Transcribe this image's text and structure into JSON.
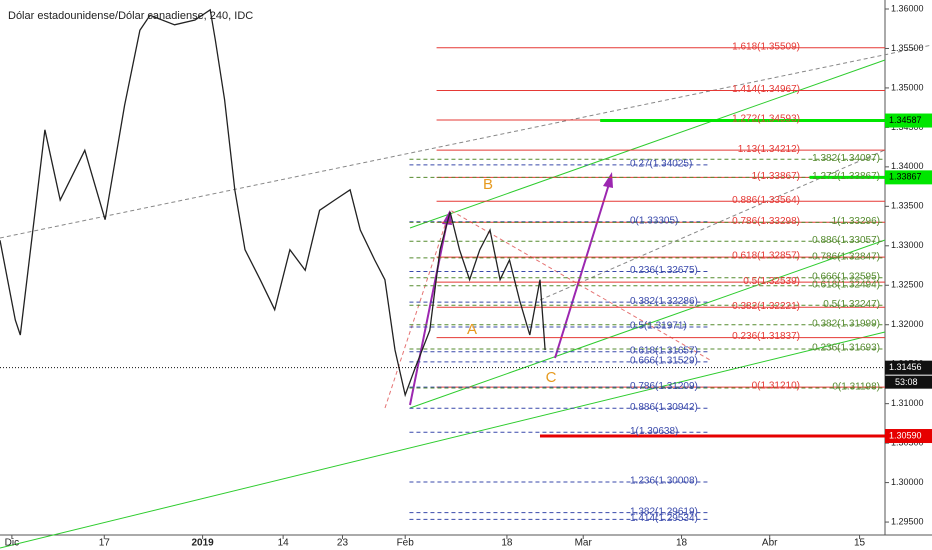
{
  "chart_data": {
    "type": "line",
    "title": "Dólar estadounidense/Dólar canadiense, 240, IDC",
    "x": [
      0,
      1.8,
      2.4,
      5.3,
      7.1,
      10.0,
      12.4,
      14.7,
      16.5,
      17.7,
      20.6,
      23.0,
      24.8,
      25.4,
      26.5,
      27.7,
      28.9,
      30.7,
      32.4,
      34.2,
      36.0,
      37.7,
      39.5,
      41.3,
      42.5,
      44.2,
      45.4,
      46.6,
      47.8,
      48.9,
      50.7,
      51.9,
      53.1,
      54.2,
      55.4,
      56.6,
      57.8,
      59.0,
      60.1,
      61.3,
      62.5,
      63.7,
      64.3
    ],
    "values": [
      1.3307,
      1.3206,
      1.3187,
      1.3447,
      1.3358,
      1.3421,
      1.3333,
      1.3478,
      1.3573,
      1.3592,
      1.358,
      1.3586,
      1.3599,
      1.3561,
      1.3485,
      1.3371,
      1.3295,
      1.3257,
      1.3219,
      1.3295,
      1.3269,
      1.3345,
      1.3358,
      1.3371,
      1.332,
      1.3282,
      1.3257,
      1.3168,
      1.3111,
      1.3143,
      1.3193,
      1.3295,
      1.3343,
      1.3295,
      1.3257,
      1.3295,
      1.332,
      1.3257,
      1.3282,
      1.3231,
      1.3187,
      1.3257,
      1.3168
    ],
    "color": "#222222",
    "xlim": [
      0,
      104.4
    ],
    "ylim": [
      1.29336,
      1.36114
    ],
    "xticks": [
      {
        "value": 1.4,
        "label": "Dic"
      },
      {
        "value": 12.3,
        "label": "17"
      },
      {
        "value": 23.9,
        "label": "2019"
      },
      {
        "value": 33.4,
        "label": "14"
      },
      {
        "value": 40.4,
        "label": "23"
      },
      {
        "value": 47.8,
        "label": "Feb"
      },
      {
        "value": 59.8,
        "label": "18"
      },
      {
        "value": 68.8,
        "label": "Mar"
      },
      {
        "value": 80.4,
        "label": "18"
      },
      {
        "value": 90.8,
        "label": "Abr"
      },
      {
        "value": 101.4,
        "label": "15"
      }
    ],
    "yticks": [
      {
        "value": 1.295,
        "label": "1.29500"
      },
      {
        "value": 1.3,
        "label": "1.30000"
      },
      {
        "value": 1.305,
        "label": "1.30500"
      },
      {
        "value": 1.31,
        "label": "1.31000"
      },
      {
        "value": 1.315,
        "label": "1.31500"
      },
      {
        "value": 1.32,
        "label": "1.32000"
      },
      {
        "value": 1.325,
        "label": "1.32500"
      },
      {
        "value": 1.33,
        "label": "1.33000"
      },
      {
        "value": 1.335,
        "label": "1.33500"
      },
      {
        "value": 1.34,
        "label": "1.34000"
      },
      {
        "value": 1.345,
        "label": "1.34500"
      },
      {
        "value": 1.35,
        "label": "1.35000"
      },
      {
        "value": 1.355,
        "label": "1.35500"
      },
      {
        "value": 1.36,
        "label": "1.36000"
      }
    ],
    "fib_sets": [
      {
        "color": "#e53935",
        "dashed": false,
        "x0": 51.5,
        "x1": 104.4,
        "levels": [
          {
            "value": 1.35509,
            "label": "1.618(1.35509)"
          },
          {
            "value": 1.34967,
            "label": "1.414(1.34967)"
          },
          {
            "value": 1.34593,
            "label": "1.272(1.34593)"
          },
          {
            "value": 1.34212,
            "label": "1.13(1.34212)"
          },
          {
            "value": 1.33867,
            "label": "1(1.33867)"
          },
          {
            "value": 1.33564,
            "label": "0.886(1.33564)"
          },
          {
            "value": 1.33298,
            "label": "0.786(1.33298)"
          },
          {
            "value": 1.32857,
            "label": "0.618(1.32857)"
          },
          {
            "value": 1.32539,
            "label": "0.5(1.32539)"
          },
          {
            "value": 1.32221,
            "label": "0.382(1.32221)"
          },
          {
            "value": 1.31837,
            "label": "0.236(1.31837)"
          },
          {
            "value": 1.3121,
            "label": "0(1.31210)"
          }
        ]
      },
      {
        "color": "#3949ab",
        "dashed": true,
        "x0": 48.3,
        "x1": 83.7,
        "levels": [
          {
            "value": 1.34025,
            "label": "0.27(1.34025)"
          },
          {
            "value": 1.33305,
            "label": "0(1.33305)"
          },
          {
            "value": 1.32675,
            "label": "0.236(1.32675)"
          },
          {
            "value": 1.32286,
            "label": "0.382(1.32286)"
          },
          {
            "value": 1.31971,
            "label": "0.5(1.31971)"
          },
          {
            "value": 1.31657,
            "label": "0.618(1.31657)"
          },
          {
            "value": 1.31529,
            "label": "0.666(1.31529)"
          },
          {
            "value": 1.31209,
            "label": "0.786(1.31209)"
          },
          {
            "value": 1.30942,
            "label": "0.886(1.30942)"
          },
          {
            "value": 1.30638,
            "label": "1(1.30638)"
          },
          {
            "value": 1.30008,
            "label": "1.236(1.30008)"
          },
          {
            "value": 1.29619,
            "label": "1.382(1.29619)"
          },
          {
            "value": 1.29534,
            "label": "1.414(1.29534)"
          }
        ]
      },
      {
        "color": "#558b2f",
        "dashed": true,
        "x0": 48.3,
        "x1": 104.4,
        "levels": [
          {
            "value": 1.34097,
            "label": "1.382(1.34097)"
          },
          {
            "value": 1.33867,
            "label": "1.272(1.33867)"
          },
          {
            "value": 1.33296,
            "label": "1(1.33296)"
          },
          {
            "value": 1.33057,
            "label": "0.886(1.33057)"
          },
          {
            "value": 1.32847,
            "label": "0.786(1.32847)"
          },
          {
            "value": 1.32595,
            "label": "0.666(1.32595)"
          },
          {
            "value": 1.32494,
            "label": "0.618(1.32494)"
          },
          {
            "value": 1.32247,
            "label": "0.5(1.32247)"
          },
          {
            "value": 1.31999,
            "label": "0.382(1.31999)"
          },
          {
            "value": 1.31693,
            "label": "0.236(1.31693)"
          },
          {
            "value": 1.31198,
            "label": "0(1.31198)"
          }
        ]
      }
    ],
    "price_marks": [
      {
        "value": 1.34587,
        "color": "#00e600",
        "x0": 70.8
      },
      {
        "value": 1.33867,
        "color": "#00e600",
        "x0": 95.5
      },
      {
        "value": {
          "value": 1.3059,
          "label": "1.30590"
        },
        "color": "#e60000",
        "x0": 63.7
      },
      {
        "value": 1.31456,
        "color": "#111111",
        "x0": 0
      }
    ],
    "countdown": "53:08",
    "wave_labels": [
      "A",
      "B",
      "C"
    ]
  }
}
